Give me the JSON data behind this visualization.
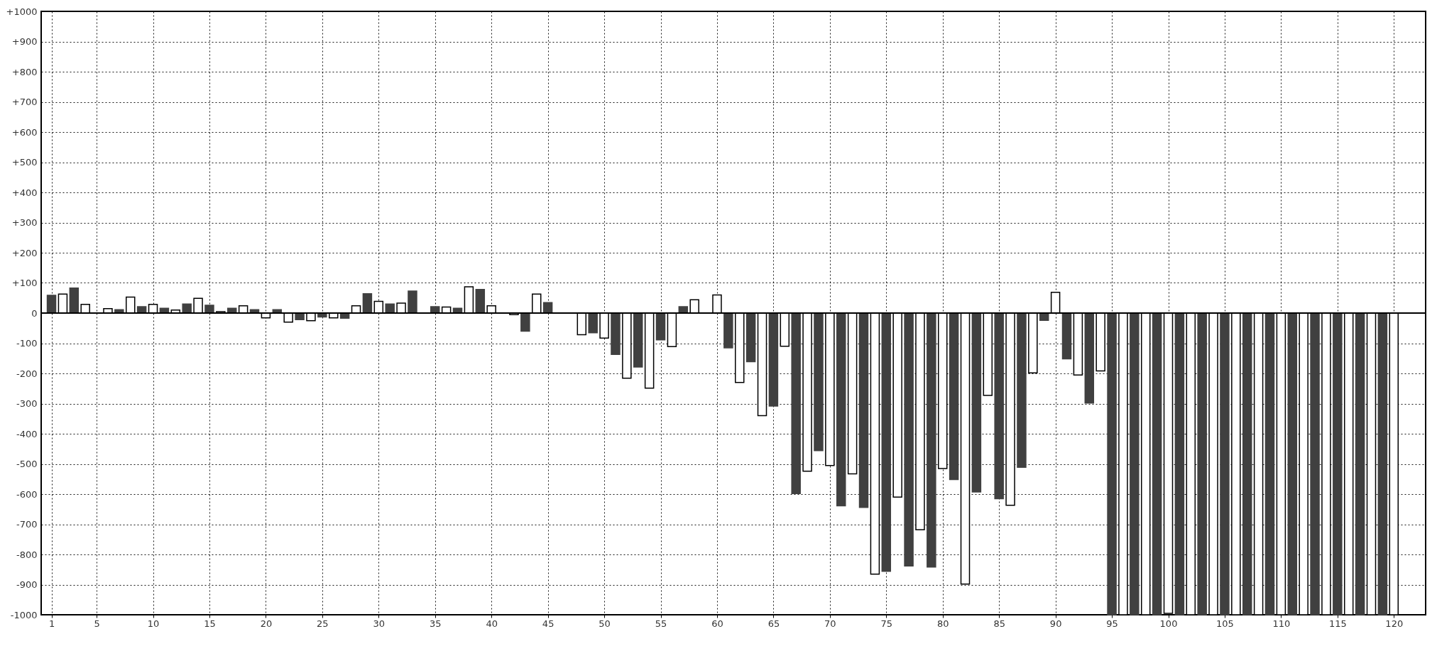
{
  "chart_data": {
    "type": "bar",
    "xlim": [
      0.4,
      122.5
    ],
    "xticks": [
      1,
      5,
      10,
      15,
      20,
      25,
      30,
      35,
      40,
      45,
      50,
      55,
      60,
      65,
      70,
      75,
      80,
      85,
      90,
      95,
      100,
      105,
      110,
      115,
      120
    ],
    "ylim": [
      -1000,
      1000
    ],
    "yticks": [
      {
        "value": -1000,
        "label": "-1000"
      },
      {
        "value": -900,
        "label": "-900"
      },
      {
        "value": -800,
        "label": "-800"
      },
      {
        "value": -700,
        "label": "-700"
      },
      {
        "value": -600,
        "label": "-600"
      },
      {
        "value": -500,
        "label": "-500"
      },
      {
        "value": -400,
        "label": "-400"
      },
      {
        "value": -300,
        "label": "-300"
      },
      {
        "value": -200,
        "label": "-200"
      },
      {
        "value": -100,
        "label": "-100"
      },
      0,
      {
        "value": 100,
        "label": "+100"
      },
      {
        "value": 200,
        "label": "+200"
      },
      {
        "value": 300,
        "label": "+300"
      },
      {
        "value": 400,
        "label": "+400"
      },
      {
        "value": 500,
        "label": "+500"
      },
      {
        "value": 600,
        "label": "+600"
      },
      {
        "value": 700,
        "label": "+700"
      },
      {
        "value": 800,
        "label": "+800"
      },
      {
        "value": 900,
        "label": "+900"
      },
      {
        "value": 1000,
        "label": "+1000"
      }
    ],
    "grid": true,
    "ref_lines": [
      {
        "axis": "y",
        "value": 0,
        "color": "#000000"
      }
    ],
    "series": [
      {
        "color": "#404040",
        "x": [
          1,
          3,
          7,
          9,
          11,
          13,
          15,
          17,
          19,
          21,
          23,
          25,
          27,
          29,
          31,
          33,
          35,
          37,
          39,
          43,
          45,
          49,
          51,
          53,
          55,
          57,
          61,
          63,
          65,
          67,
          69,
          71,
          73,
          75,
          77,
          79,
          81,
          83,
          85,
          87,
          89,
          91,
          93,
          95,
          97,
          99,
          101,
          103,
          105,
          107,
          109,
          111,
          113,
          115,
          117,
          119
        ],
        "values": [
          59,
          83,
          11,
          21,
          16,
          30,
          26,
          16,
          11,
          11,
          -22,
          -13,
          -17,
          64,
          30,
          73,
          21,
          16,
          78,
          -60,
          35,
          -65,
          -137,
          -179,
          -89,
          21,
          -115,
          -161,
          -308,
          -598,
          -456,
          -639,
          -644,
          -856,
          -838,
          -842,
          -552,
          -593,
          -615,
          -511,
          -24,
          -152,
          -298,
          -1000,
          -1000,
          -1000,
          -1000,
          -1000,
          -1000,
          -1000,
          -1000,
          -1000,
          -1000,
          -1000,
          -1000,
          -1000
        ]
      },
      {
        "color": "#ffffff",
        "x": [
          2,
          4,
          6,
          8,
          10,
          12,
          14,
          16,
          18,
          20,
          22,
          24,
          26,
          28,
          30,
          32,
          36,
          38,
          40,
          42,
          44,
          48,
          50,
          52,
          54,
          56,
          58,
          60,
          62,
          64,
          66,
          68,
          70,
          72,
          74,
          76,
          78,
          80,
          82,
          84,
          86,
          88,
          90,
          92,
          94,
          96,
          98,
          100,
          102,
          104,
          106,
          108,
          110,
          112,
          114,
          116,
          118,
          120
        ],
        "values": [
          63,
          29,
          15,
          53,
          29,
          10,
          49,
          5,
          24,
          -16,
          -30,
          -25,
          -16,
          24,
          39,
          33,
          20,
          87,
          24,
          -5,
          63,
          -72,
          -83,
          -216,
          -249,
          -111,
          44,
          60,
          -230,
          -340,
          -110,
          -524,
          -505,
          -533,
          -865,
          -610,
          -718,
          -515,
          -898,
          -273,
          -637,
          -198,
          69,
          -205,
          -192,
          -1000,
          -1000,
          -995,
          -1000,
          -1000,
          -1000,
          -1000,
          -1000,
          -1000,
          -1000,
          -1000,
          -1000,
          -1000
        ]
      }
    ]
  }
}
